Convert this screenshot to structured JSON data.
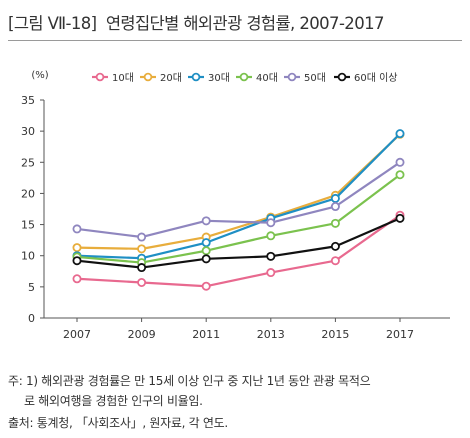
{
  "figure_tag": "[그림 Ⅶ-18]",
  "figure_title": "연령집단별 해외관광 경험률, 2007-2017",
  "notes": {
    "line1": "주: 1) 해외관광 경험률은 만 15세 이상 인구 중 지난 1년 동안 관광 목적으",
    "line2": "로 해외여행을 경험한 인구의 비율임.",
    "source": "출처: 통계청, 「사회조사」, 원자료, 각 연도."
  },
  "chart_data": {
    "type": "line",
    "title": "연령집단별 해외관광 경험률, 2007-2017",
    "unit_label": "(%)",
    "xlabel": "",
    "ylabel": "",
    "categories": [
      "2007",
      "2009",
      "2011",
      "2013",
      "2015",
      "2017"
    ],
    "ylim": [
      0,
      35
    ],
    "yticks": [
      0,
      5,
      10,
      15,
      20,
      25,
      30,
      35
    ],
    "legend_position": "top",
    "grid": false,
    "series": [
      {
        "name": "10대",
        "color": "#e8698f",
        "values": [
          6.3,
          5.7,
          5.1,
          7.3,
          9.2,
          16.5
        ]
      },
      {
        "name": "20대",
        "color": "#e8ad3c",
        "values": [
          11.3,
          11.1,
          13.0,
          16.2,
          19.7,
          29.5
        ]
      },
      {
        "name": "30대",
        "color": "#1f8fc4",
        "values": [
          10.0,
          9.6,
          12.1,
          16.0,
          19.2,
          29.6
        ]
      },
      {
        "name": "40대",
        "color": "#7bc24e",
        "values": [
          9.8,
          8.9,
          10.8,
          13.2,
          15.2,
          23.0
        ]
      },
      {
        "name": "50대",
        "color": "#8f86bf",
        "values": [
          14.3,
          13.0,
          15.6,
          15.3,
          17.9,
          25.0
        ]
      },
      {
        "name": "60대 이상",
        "color": "#111111",
        "values": [
          9.2,
          8.1,
          9.5,
          9.9,
          11.5,
          16.0
        ]
      }
    ]
  }
}
